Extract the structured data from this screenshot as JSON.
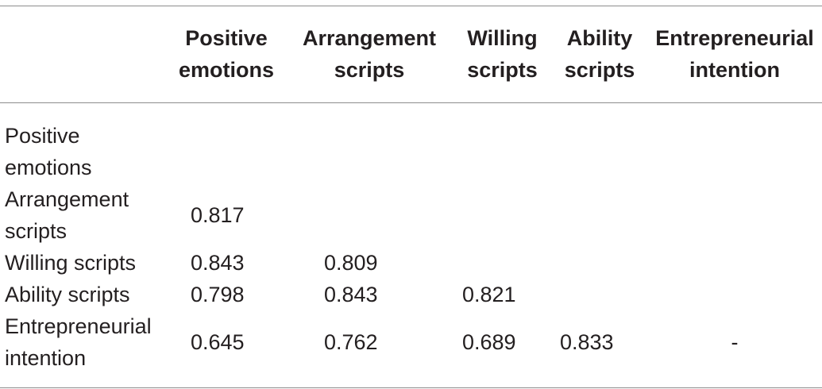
{
  "table": {
    "columns": [
      "",
      "Positive emotions",
      "Arrangement scripts",
      "Willing scripts",
      "Ability scripts",
      "Entrepreneurial intention"
    ],
    "rows": [
      {
        "label": "Positive emotions",
        "cells": [
          "",
          "",
          "",
          "",
          ""
        ]
      },
      {
        "label": "Arrangement scripts",
        "cells": [
          "0.817",
          "",
          "",
          "",
          ""
        ]
      },
      {
        "label": "Willing scripts",
        "cells": [
          "0.843",
          "0.809",
          "",
          "",
          ""
        ]
      },
      {
        "label": "Ability scripts",
        "cells": [
          "0.798",
          "0.843",
          "0.821",
          "",
          ""
        ]
      },
      {
        "label": "Entrepreneurial intention",
        "cells": [
          "0.645",
          "0.762",
          "0.689",
          "0.833",
          "-"
        ]
      }
    ]
  }
}
